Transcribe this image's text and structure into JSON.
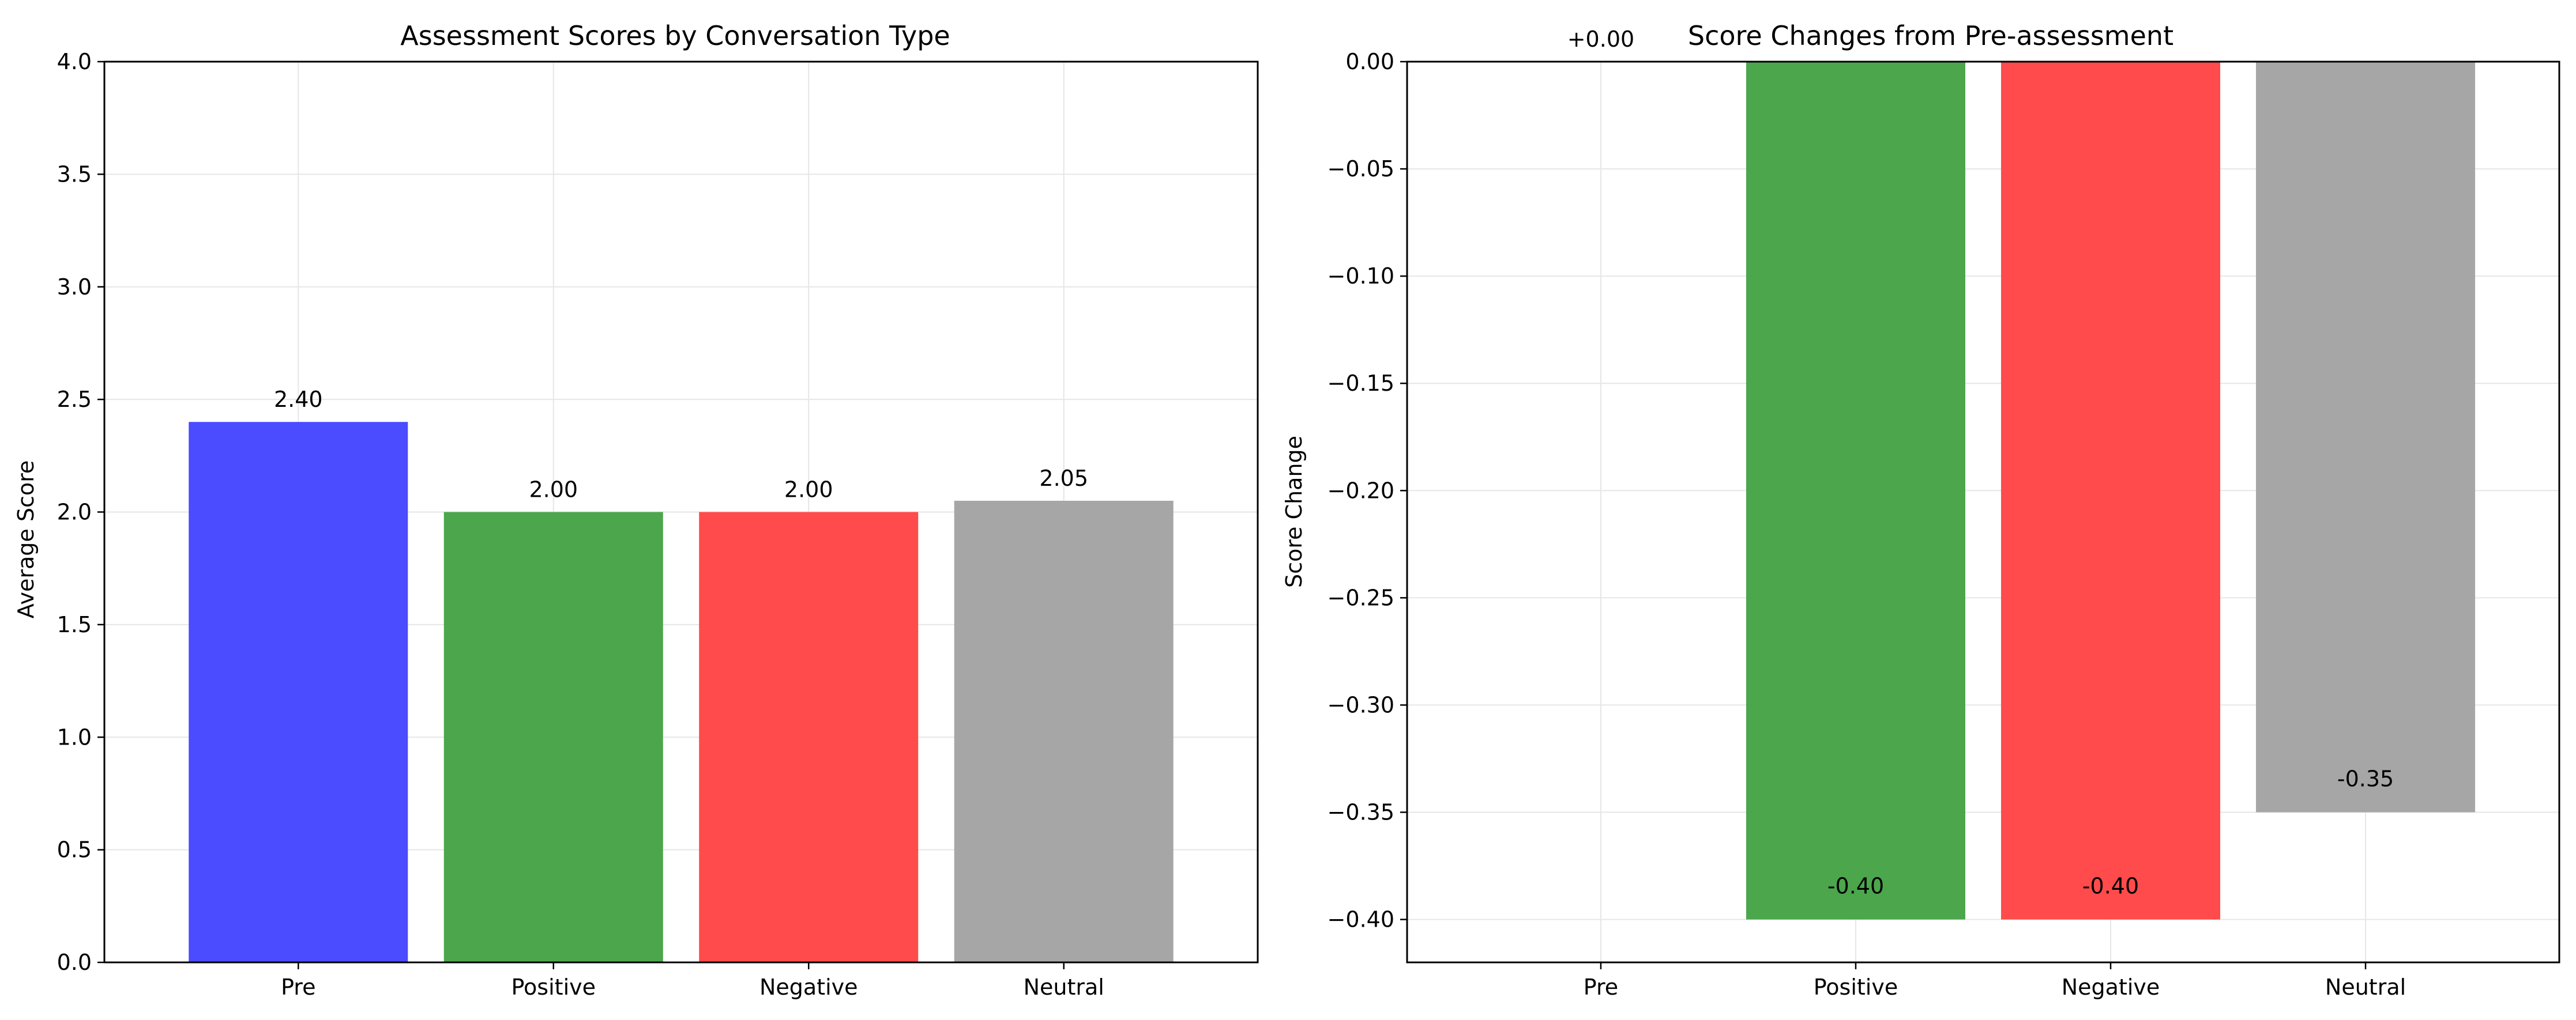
{
  "chart_data": [
    {
      "type": "bar",
      "title": "Assessment Scores by Conversation Type",
      "xlabel": "",
      "ylabel": "Average Score",
      "categories": [
        "Pre",
        "Positive",
        "Negative",
        "Neutral"
      ],
      "values": [
        2.4,
        2.0,
        2.0,
        2.05
      ],
      "data_labels": [
        "2.40",
        "2.00",
        "2.00",
        "2.05"
      ],
      "colors": [
        "#4b4bff",
        "#4ca64c",
        "#ff4b4b",
        "#a6a6a6"
      ],
      "ylim": [
        0,
        4
      ],
      "yticks": [
        0.0,
        0.5,
        1.0,
        1.5,
        2.0,
        2.5,
        3.0,
        3.5,
        4.0
      ],
      "ytick_labels": [
        "0.0",
        "0.5",
        "1.0",
        "1.5",
        "2.0",
        "2.5",
        "3.0",
        "3.5",
        "4.0"
      ],
      "grid": true,
      "legend": "none"
    },
    {
      "type": "bar",
      "title": "Score Changes from Pre-assessment",
      "xlabel": "",
      "ylabel": "Score Change",
      "categories": [
        "Pre",
        "Positive",
        "Negative",
        "Neutral"
      ],
      "values": [
        0.0,
        -0.4,
        -0.4,
        -0.35
      ],
      "data_labels": [
        "+0.00",
        "-0.40",
        "-0.40",
        "-0.35"
      ],
      "colors": [
        "#4b4bff",
        "#4ca64c",
        "#ff4b4b",
        "#a6a6a6"
      ],
      "ylim": [
        -0.42,
        0
      ],
      "yticks": [
        0.0,
        -0.05,
        -0.1,
        -0.15,
        -0.2,
        -0.25,
        -0.3,
        -0.35,
        -0.4
      ],
      "ytick_labels": [
        "0.00",
        "−0.05",
        "−0.10",
        "−0.15",
        "−0.20",
        "−0.25",
        "−0.30",
        "−0.35",
        "−0.40"
      ],
      "grid": true,
      "legend": "none"
    }
  ]
}
